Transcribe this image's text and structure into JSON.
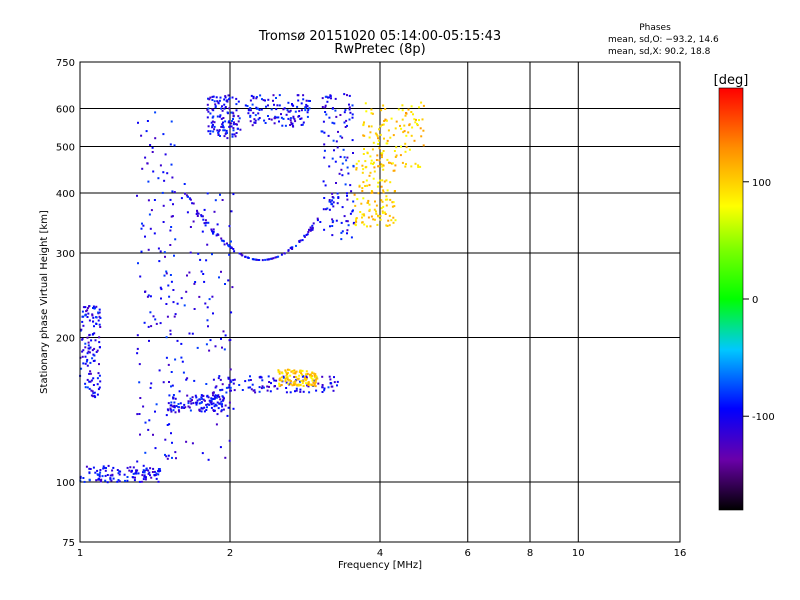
{
  "chart_data": {
    "type": "scatter",
    "title": "Tromsø 20151020 05:14:00-05:15:43",
    "subtitle": "RwPretec (8p)",
    "xlabel": "Frequency [MHz]",
    "ylabel": "Stationary phase Virtual Height [km]",
    "x_scale": "log",
    "y_scale": "log",
    "xlim": [
      1,
      16
    ],
    "ylim": [
      75,
      750
    ],
    "x_ticks": [
      1,
      2,
      4,
      6,
      8,
      10,
      16
    ],
    "y_ticks": [
      75,
      100,
      200,
      300,
      400,
      500,
      600,
      750
    ],
    "grid": true,
    "stats": {
      "header": "Phases",
      "line_o": "mean, sd,O: −93.2, 14.6",
      "line_x": "mean, sd,X:  90.2, 18.8"
    },
    "colorbar": {
      "label": "[deg]",
      "range": [
        -180,
        180
      ],
      "ticks": [
        100,
        0,
        -100
      ]
    },
    "traces": [
      {
        "component": "O",
        "phase": -100,
        "x_range": [
          1.0,
          1.45
        ],
        "y": 104
      },
      {
        "component": "O",
        "phase": -100,
        "x_range": [
          1.3,
          1.55
        ],
        "y_range": [
          110,
          600
        ]
      },
      {
        "component": "O",
        "phase": -100,
        "x_range": [
          1.5,
          2.05
        ],
        "y_range": [
          110,
          420
        ]
      },
      {
        "component": "O",
        "phase": -100,
        "x_range": [
          1.62,
          3.3
        ],
        "y_at_min": 290,
        "y_at_ends": 400
      },
      {
        "component": "O",
        "phase": -100,
        "x_range": [
          1.85,
          3.3
        ],
        "y": 160
      },
      {
        "component": "O",
        "phase": -100,
        "x_range": [
          1.5,
          2.0
        ],
        "y": 146
      },
      {
        "component": "O",
        "phase": -100,
        "x_range": [
          3.05,
          3.55
        ],
        "y_range": [
          320,
          650
        ]
      },
      {
        "component": "O",
        "phase": -100,
        "x_range": [
          1.0,
          1.1
        ],
        "y_range": [
          150,
          235
        ]
      },
      {
        "component": "O",
        "phase": -100,
        "x_range": [
          1.8,
          2.1
        ],
        "y_range": [
          520,
          640
        ]
      },
      {
        "component": "O",
        "phase": -100,
        "x_range": [
          2.15,
          2.9
        ],
        "y_range": [
          550,
          640
        ]
      },
      {
        "component": "X",
        "phase": 100,
        "x_range": [
          3.55,
          4.3
        ],
        "y_range": [
          340,
          470
        ]
      },
      {
        "component": "X",
        "phase": 100,
        "x_range": [
          3.7,
          4.9
        ],
        "y_range": [
          450,
          620
        ]
      },
      {
        "component": "X",
        "phase": 100,
        "x_range": [
          2.5,
          3.0
        ],
        "y": 165
      }
    ]
  }
}
